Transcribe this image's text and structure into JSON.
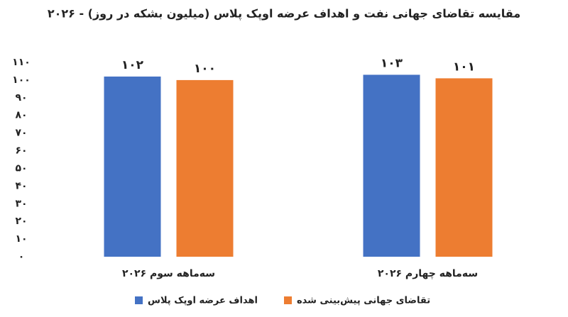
{
  "chart_data": {
    "type": "bar",
    "title": "مقایسه تقاضای جهانی نفت و اهداف عرضه اوپک پلاس (میلیون بشکه در روز) - ۲۰۲۶",
    "categories": [
      "سه‌ماهه سوم ۲۰۲۶",
      "سه‌ماهه چهارم ۲۰۲۶"
    ],
    "series": [
      {
        "name": "اهداف عرضه اوپک پلاس",
        "color": "#4472c4",
        "values": [
          102,
          103
        ],
        "value_labels": [
          "۱۰۲",
          "۱۰۳"
        ]
      },
      {
        "name": "تقاضای جهانی پیش‌بینی شده",
        "color": "#ed7d31",
        "values": [
          100,
          101
        ],
        "value_labels": [
          "۱۰۰",
          "۱۰۱"
        ]
      }
    ],
    "ylim": [
      0,
      110
    ],
    "yticks": [
      {
        "value": 0,
        "label": "۰"
      },
      {
        "value": 10,
        "label": "۱۰"
      },
      {
        "value": 20,
        "label": "۲۰"
      },
      {
        "value": 30,
        "label": "۳۰"
      },
      {
        "value": 40,
        "label": "۴۰"
      },
      {
        "value": 50,
        "label": "۵۰"
      },
      {
        "value": 60,
        "label": "۶۰"
      },
      {
        "value": 70,
        "label": "۷۰"
      },
      {
        "value": 80,
        "label": "۸۰"
      },
      {
        "value": 90,
        "label": "۹۰"
      },
      {
        "value": 100,
        "label": "۱۰۰"
      },
      {
        "value": 110,
        "label": "۱۱۰"
      }
    ],
    "grid": false
  }
}
